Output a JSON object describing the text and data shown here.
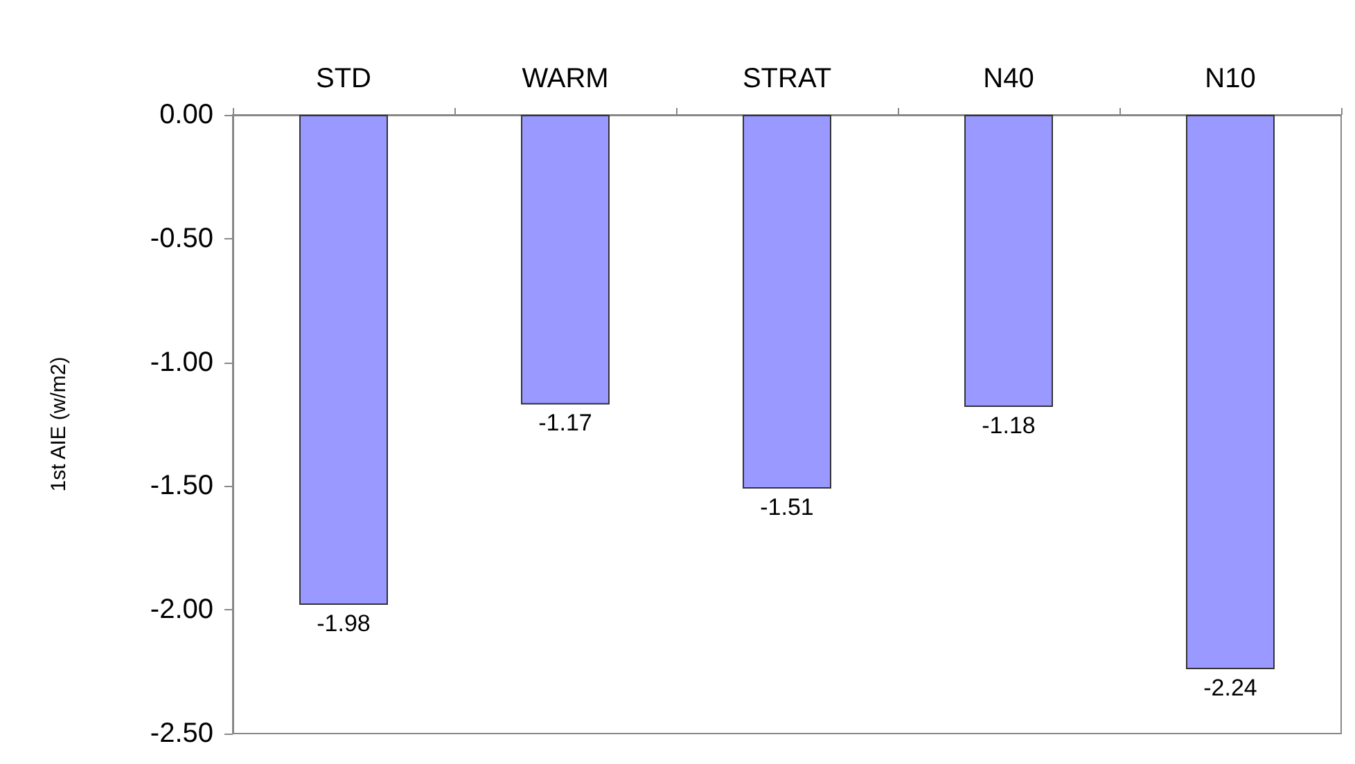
{
  "chart_data": {
    "type": "bar",
    "ylabel": "1st AIE (w/m2)",
    "categories": [
      "STD",
      "WARM",
      "STRAT",
      "N40",
      "N10"
    ],
    "values": [
      -1.98,
      -1.17,
      -1.51,
      -1.18,
      -2.24
    ],
    "color": "#9999ff",
    "ylim": [
      -2.5,
      0
    ],
    "yticks": [
      {
        "value": 0,
        "label": "0.00"
      },
      {
        "value": -0.5,
        "label": "-0.50"
      },
      {
        "value": -1,
        "label": "-1.00"
      },
      {
        "value": -1.5,
        "label": "-1.50"
      },
      {
        "value": -2,
        "label": "-2.00"
      },
      {
        "value": -2.5,
        "label": "-2.50"
      }
    ],
    "data_labels": true
  }
}
